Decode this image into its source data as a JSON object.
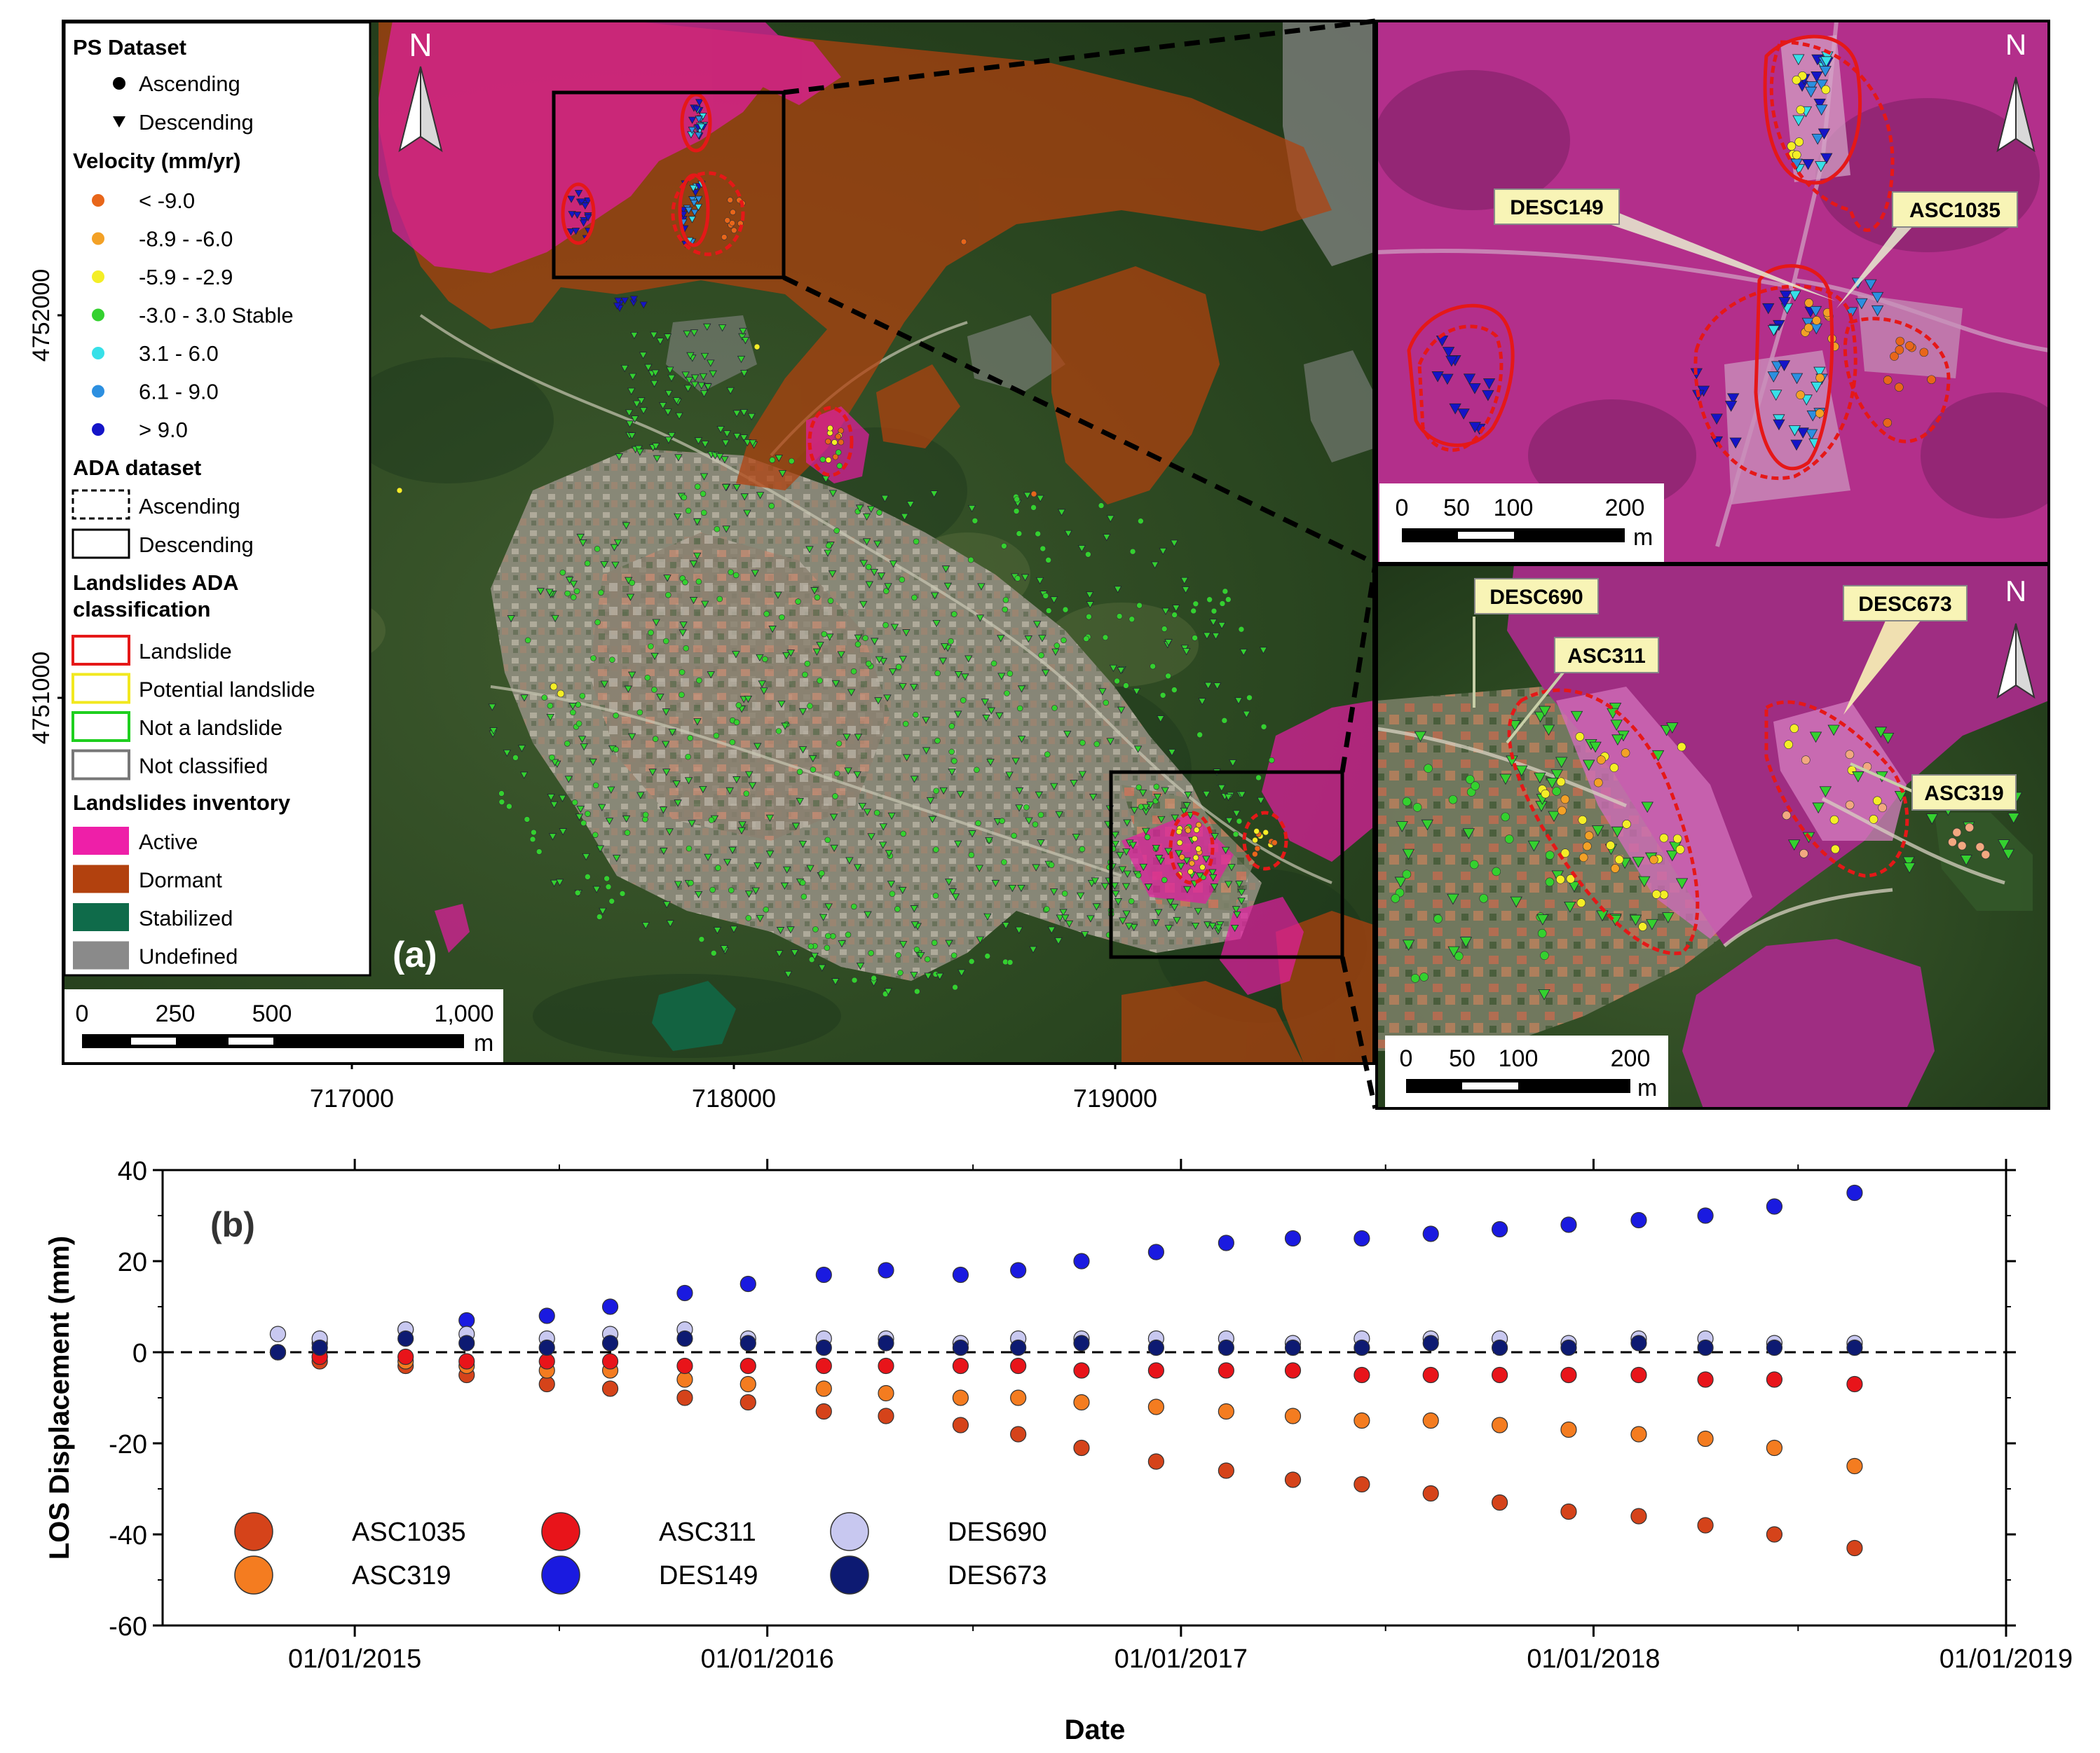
{
  "main_map": {
    "panel_label": "(a)",
    "north": "N",
    "y_ticks": [
      {
        "value": 4752000,
        "label": "4752000"
      },
      {
        "value": 4751000,
        "label": "4751000"
      }
    ],
    "x_ticks": [
      {
        "value": 717000,
        "label": "717000"
      },
      {
        "value": 718000,
        "label": "718000"
      },
      {
        "value": 719000,
        "label": "719000"
      }
    ],
    "scale": {
      "labels": [
        "0",
        "250",
        "500",
        "1,000"
      ],
      "unit": "m"
    }
  },
  "legend": {
    "ps_title": "PS Dataset",
    "ps_items": [
      {
        "symbol": "circle",
        "label": "Ascending"
      },
      {
        "symbol": "triangle",
        "label": "Descending"
      }
    ],
    "velocity_title": "Velocity (mm/yr)",
    "velocity_items": [
      {
        "label": "< -9.0",
        "color": "#e8661a"
      },
      {
        "label": "-8.9 - -6.0",
        "color": "#f3a126"
      },
      {
        "label": "-5.9 - -2.9",
        "color": "#f4ee26"
      },
      {
        "label": "-3.0 - 3.0 Stable",
        "color": "#34d12f"
      },
      {
        "label": "3.1 - 6.0",
        "color": "#37e0e8"
      },
      {
        "label": "6.1 - 9.0",
        "color": "#2c8fe0"
      },
      {
        "label": "> 9.0",
        "color": "#1414c8"
      }
    ],
    "ada_title": "ADA dataset",
    "ada_items": [
      {
        "style": "dashed",
        "label": "Ascending"
      },
      {
        "style": "solid",
        "label": "Descending"
      }
    ],
    "class_title_1": "Landslides ADA",
    "class_title_2": "classification",
    "class_items": [
      {
        "label": "Landslide",
        "color": "#e51818"
      },
      {
        "label": "Potential landslide",
        "color": "#f2e81f"
      },
      {
        "label": "Not a landslide",
        "color": "#1fcf1f"
      },
      {
        "label": "Not classified",
        "color": "#777777"
      }
    ],
    "inventory_title": "Landslides inventory",
    "inventory_items": [
      {
        "label": "Active",
        "color": "#ee1fa8"
      },
      {
        "label": "Dormant",
        "color": "#b2410e"
      },
      {
        "label": "Stabilized",
        "color": "#0f6b4a"
      },
      {
        "label": "Undefined",
        "color": "#8a8a8a"
      }
    ]
  },
  "inset_top": {
    "north": "N",
    "callouts": [
      "DESC149",
      "ASC1035"
    ],
    "scale": {
      "labels": [
        "0",
        "50",
        "100",
        "200"
      ],
      "unit": "m"
    }
  },
  "inset_bottom": {
    "north": "N",
    "callouts": [
      "DESC690",
      "ASC311",
      "DESC673",
      "ASC319"
    ],
    "scale": {
      "labels": [
        "0",
        "50",
        "100",
        "200"
      ],
      "unit": "m"
    }
  },
  "chart_data": {
    "type": "scatter",
    "panel_label": "(b)",
    "title": "",
    "xlabel": "Date",
    "ylabel": "LOS Displacement (mm)",
    "xlim": [
      "2014-07-15",
      "2019-01-01"
    ],
    "ylim": [
      -60,
      40
    ],
    "y_ticks": [
      40,
      20,
      0,
      -20,
      -40,
      -60
    ],
    "x_tick_labels": [
      "01/01/2015",
      "01/01/2016",
      "01/01/2017",
      "01/01/2018",
      "01/01/2019"
    ],
    "x_tick_dates": [
      "2015-01-01",
      "2016-01-01",
      "2017-01-01",
      "2018-01-01",
      "2019-01-01"
    ],
    "reference_line": 0,
    "legend_placement": "lower-left",
    "series": [
      {
        "name": "ASC1035",
        "color": "#d5431a",
        "x": [
          "2014-10-25",
          "2014-12-01",
          "2015-02-15",
          "2015-04-10",
          "2015-06-20",
          "2015-08-15",
          "2015-10-20",
          "2015-12-15",
          "2016-02-20",
          "2016-04-15",
          "2016-06-20",
          "2016-08-10",
          "2016-10-05",
          "2016-12-10",
          "2017-02-10",
          "2017-04-10",
          "2017-06-10",
          "2017-08-10",
          "2017-10-10",
          "2017-12-10",
          "2018-02-10",
          "2018-04-10",
          "2018-06-10",
          "2018-08-20"
        ],
        "y": [
          0,
          -2,
          -3,
          -5,
          -7,
          -8,
          -10,
          -11,
          -13,
          -14,
          -16,
          -18,
          -21,
          -24,
          -26,
          -28,
          -29,
          -31,
          -33,
          -35,
          -36,
          -38,
          -40,
          -43
        ]
      },
      {
        "name": "ASC319",
        "color": "#f47c20",
        "x": [
          "2014-10-25",
          "2014-12-01",
          "2015-02-15",
          "2015-04-10",
          "2015-06-20",
          "2015-08-15",
          "2015-10-20",
          "2015-12-15",
          "2016-02-20",
          "2016-04-15",
          "2016-06-20",
          "2016-08-10",
          "2016-10-05",
          "2016-12-10",
          "2017-02-10",
          "2017-04-10",
          "2017-06-10",
          "2017-08-10",
          "2017-10-10",
          "2017-12-10",
          "2018-02-10",
          "2018-04-10",
          "2018-06-10",
          "2018-08-20"
        ],
        "y": [
          0,
          -1,
          -2,
          -3,
          -4,
          -4,
          -6,
          -7,
          -8,
          -9,
          -10,
          -10,
          -11,
          -12,
          -13,
          -14,
          -15,
          -15,
          -16,
          -17,
          -18,
          -19,
          -21,
          -25
        ]
      },
      {
        "name": "ASC311",
        "color": "#e8141a",
        "x": [
          "2014-10-25",
          "2014-12-01",
          "2015-02-15",
          "2015-04-10",
          "2015-06-20",
          "2015-08-15",
          "2015-10-20",
          "2015-12-15",
          "2016-02-20",
          "2016-04-15",
          "2016-06-20",
          "2016-08-10",
          "2016-10-05",
          "2016-12-10",
          "2017-02-10",
          "2017-04-10",
          "2017-06-10",
          "2017-08-10",
          "2017-10-10",
          "2017-12-10",
          "2018-02-10",
          "2018-04-10",
          "2018-06-10",
          "2018-08-20"
        ],
        "y": [
          0,
          -1,
          -1,
          -2,
          -2,
          -2,
          -3,
          -3,
          -3,
          -3,
          -3,
          -3,
          -4,
          -4,
          -4,
          -4,
          -5,
          -5,
          -5,
          -5,
          -5,
          -6,
          -6,
          -7
        ]
      },
      {
        "name": "DES149",
        "color": "#1a1ae0",
        "x": [
          "2014-10-25",
          "2014-12-01",
          "2015-02-15",
          "2015-04-10",
          "2015-06-20",
          "2015-08-15",
          "2015-10-20",
          "2015-12-15",
          "2016-02-20",
          "2016-04-15",
          "2016-06-20",
          "2016-08-10",
          "2016-10-05",
          "2016-12-10",
          "2017-02-10",
          "2017-04-10",
          "2017-06-10",
          "2017-08-10",
          "2017-10-10",
          "2017-12-10",
          "2018-02-10",
          "2018-04-10",
          "2018-06-10",
          "2018-08-20"
        ],
        "y": [
          0,
          2,
          5,
          7,
          8,
          10,
          13,
          15,
          17,
          18,
          17,
          18,
          20,
          22,
          24,
          25,
          25,
          26,
          27,
          28,
          29,
          30,
          32,
          35
        ]
      },
      {
        "name": "DES690",
        "color": "#c8c8f0",
        "x": [
          "2014-10-25",
          "2014-12-01",
          "2015-02-15",
          "2015-04-10",
          "2015-06-20",
          "2015-08-15",
          "2015-10-20",
          "2015-12-15",
          "2016-02-20",
          "2016-04-15",
          "2016-06-20",
          "2016-08-10",
          "2016-10-05",
          "2016-12-10",
          "2017-02-10",
          "2017-04-10",
          "2017-06-10",
          "2017-08-10",
          "2017-10-10",
          "2017-12-10",
          "2018-02-10",
          "2018-04-10",
          "2018-06-10",
          "2018-08-20"
        ],
        "y": [
          4,
          3,
          5,
          4,
          3,
          4,
          5,
          3,
          3,
          3,
          2,
          3,
          3,
          3,
          3,
          2,
          3,
          3,
          3,
          2,
          3,
          3,
          2,
          2
        ]
      },
      {
        "name": "DES673",
        "color": "#0d1a72",
        "x": [
          "2014-10-25",
          "2014-12-01",
          "2015-02-15",
          "2015-04-10",
          "2015-06-20",
          "2015-08-15",
          "2015-10-20",
          "2015-12-15",
          "2016-02-20",
          "2016-04-15",
          "2016-06-20",
          "2016-08-10",
          "2016-10-05",
          "2016-12-10",
          "2017-02-10",
          "2017-04-10",
          "2017-06-10",
          "2017-08-10",
          "2017-10-10",
          "2017-12-10",
          "2018-02-10",
          "2018-04-10",
          "2018-06-10",
          "2018-08-20"
        ],
        "y": [
          0,
          1,
          3,
          2,
          1,
          2,
          3,
          2,
          1,
          2,
          1,
          1,
          2,
          1,
          1,
          1,
          1,
          2,
          1,
          1,
          2,
          1,
          1,
          1
        ]
      }
    ]
  }
}
